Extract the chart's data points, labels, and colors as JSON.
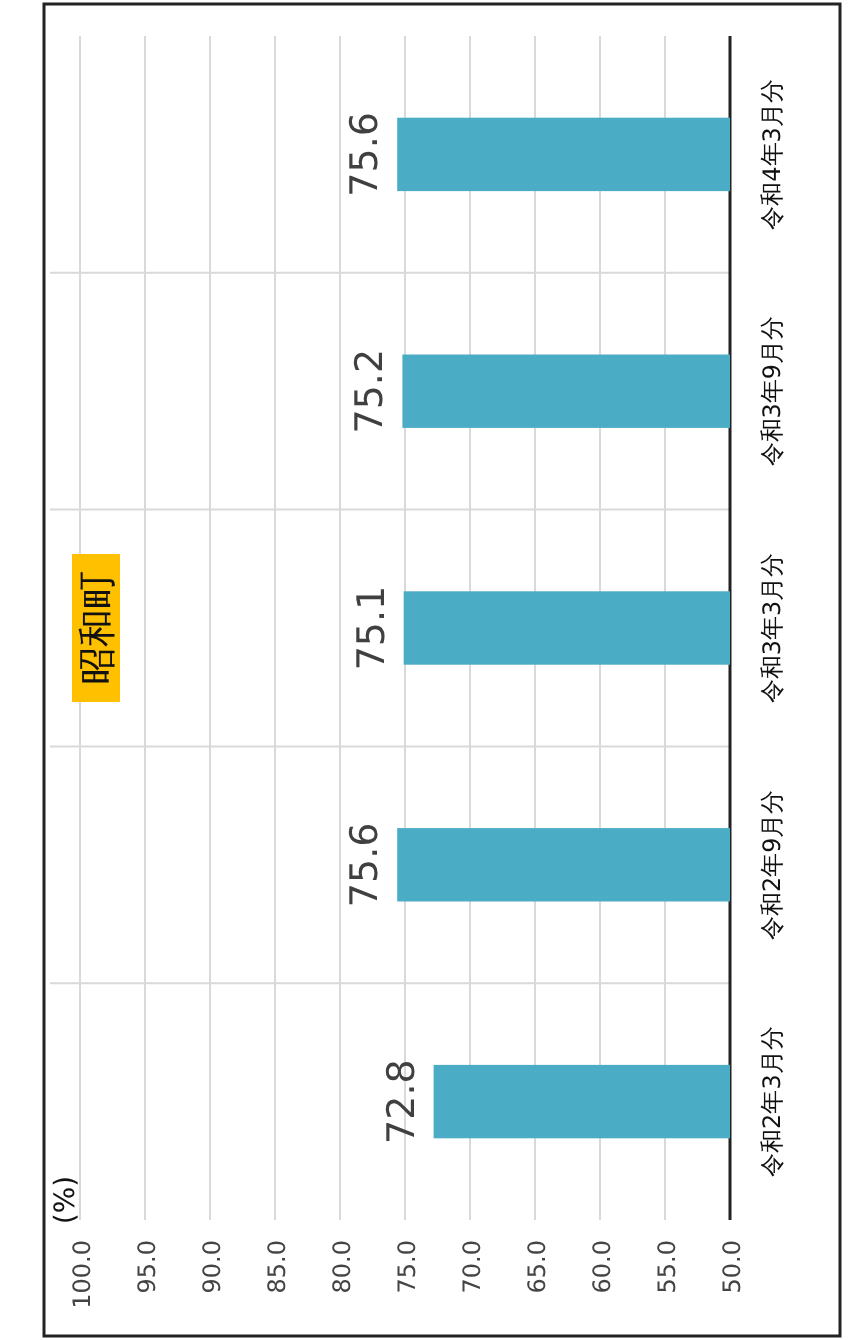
{
  "chart_data": {
    "type": "bar",
    "orientation": "horizontal",
    "title": "昭和町",
    "annotations": [
      "(%)"
    ],
    "categories": [
      "令和4年3月分",
      "令和3年9月分",
      "令和3年3月分",
      "令和2年9月分",
      "令和2年3月分"
    ],
    "values": [
      75.6,
      75.2,
      75.1,
      75.6,
      72.8
    ],
    "color": "#4bacc6",
    "xlim": [
      100,
      50
    ],
    "xticks": [
      {
        "value": 100,
        "label": "100.0"
      },
      {
        "value": 95,
        "label": "95.0"
      },
      {
        "value": 90,
        "label": "90.0"
      },
      {
        "value": 85,
        "label": "85.0"
      },
      {
        "value": 80,
        "label": "80.0"
      },
      {
        "value": 75,
        "label": "75.0"
      },
      {
        "value": 70,
        "label": "70.0"
      },
      {
        "value": 65,
        "label": "65.0"
      },
      {
        "value": 60,
        "label": "60.0"
      },
      {
        "value": 55,
        "label": "55.0"
      },
      {
        "value": 50,
        "label": "50.0"
      }
    ],
    "data_labels": true,
    "grid": true
  }
}
